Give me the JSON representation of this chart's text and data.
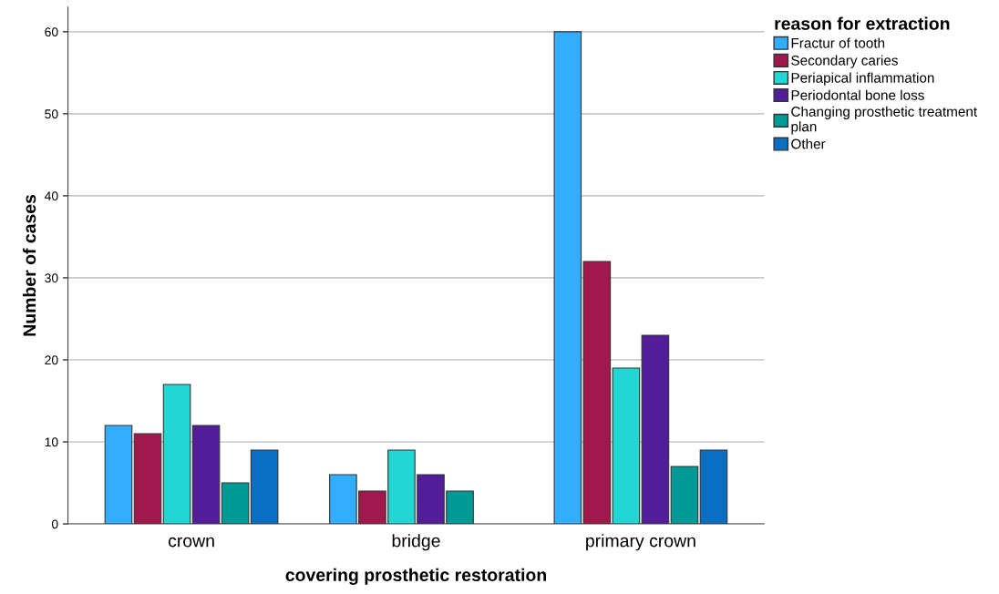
{
  "chart_data": {
    "type": "bar",
    "xlabel": "covering prosthetic restoration",
    "ylabel": "Number of cases",
    "legend_title": "reason for extraction",
    "categories": [
      "crown",
      "bridge",
      "primary crown"
    ],
    "series": [
      {
        "name": "Fractur of tooth",
        "color": "#33adff",
        "values": [
          12,
          6,
          60
        ]
      },
      {
        "name": "Secondary caries",
        "color": "#a0194c",
        "values": [
          11,
          4,
          32
        ]
      },
      {
        "name": "Periapical inflammation",
        "color": "#22d6d3",
        "values": [
          17,
          9,
          19
        ]
      },
      {
        "name": "Periodontal bone loss",
        "color": "#521d98",
        "values": [
          12,
          6,
          23
        ]
      },
      {
        "name": "Changing prosthetic treatment plan",
        "color": "#009a96",
        "values": [
          5,
          4,
          7
        ]
      },
      {
        "name": "Other",
        "color": "#0a6fc2",
        "values": [
          9,
          null,
          9
        ]
      }
    ],
    "ylim": [
      0,
      63
    ],
    "yticks": [
      0,
      10,
      20,
      30,
      40,
      50,
      60
    ],
    "grid": "y",
    "legend": "top right"
  }
}
